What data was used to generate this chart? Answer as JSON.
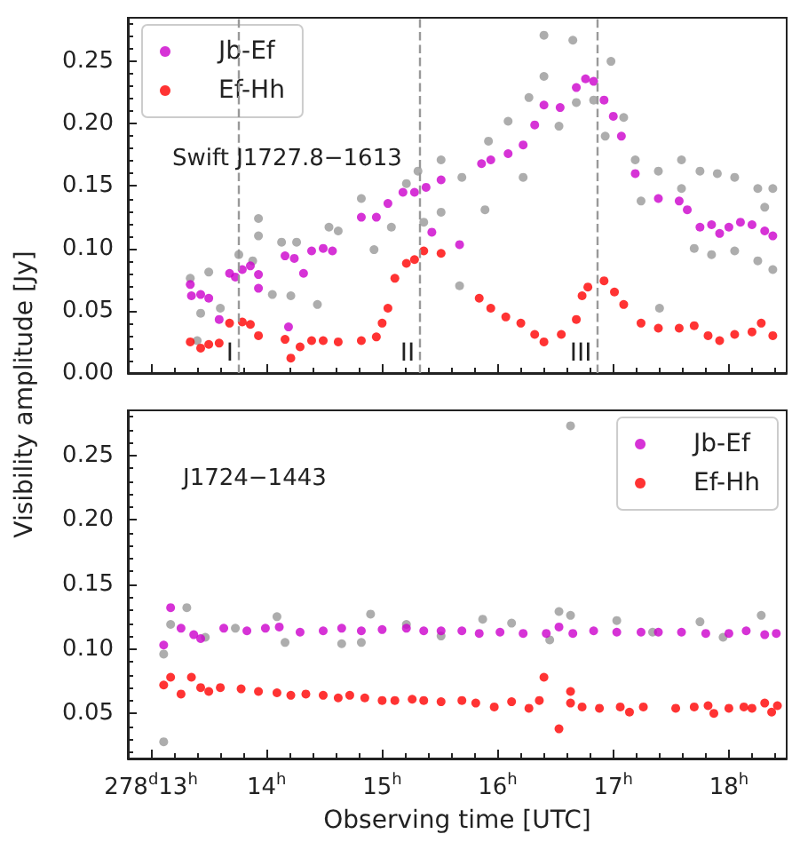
{
  "chart_data": [
    {
      "type": "scatter",
      "title": "Swift J1727.8−1613",
      "ylabel": "Visibility amplitude [Jy]",
      "xlim": [
        12.8,
        18.5
      ],
      "xticks": [
        13,
        14,
        15,
        16,
        17,
        18
      ],
      "ylim": [
        0,
        0.285
      ],
      "yticks": [
        {
          "value": 0,
          "label": "0.00"
        },
        0.05,
        {
          "value": 0.1,
          "label": "0.10"
        },
        0.15,
        {
          "value": 0.2,
          "label": "0.20"
        },
        0.25
      ],
      "tick_labels": "y",
      "grid": false,
      "legend": "top left",
      "marker": "circle",
      "ref_lines": [
        {
          "axis": "x",
          "value": 13.76,
          "label": "I",
          "color": "#999999",
          "line_style": "dashed"
        },
        {
          "axis": "x",
          "value": 15.33,
          "label": "II",
          "color": "#999999",
          "line_style": "dashed"
        },
        {
          "axis": "x",
          "value": 16.86,
          "label": "III",
          "color": "#999999",
          "line_style": "dashed"
        }
      ],
      "series": [
        {
          "color": "#999999",
          "x": [
            13.34,
            13.43,
            13.5,
            13.4,
            13.6,
            13.76,
            13.88,
            13.93,
            13.93,
            14.05,
            14.13,
            14.21,
            14.26,
            14.44,
            14.54,
            14.62,
            14.93,
            14.82,
            15.08,
            15.21,
            15.31,
            15.36,
            15.51,
            15.51,
            15.67,
            15.69,
            15.89,
            15.92,
            16.09,
            16.22,
            16.27,
            16.4,
            16.4,
            16.53,
            16.65,
            16.68,
            16.83,
            16.98,
            16.93,
            17.09,
            17.19,
            17.24,
            17.39,
            17.4,
            17.59,
            17.59,
            17.75,
            17.7,
            17.9,
            17.85,
            18.05,
            18.05,
            18.25,
            18.25,
            18.38,
            18.38,
            18.31
          ],
          "values": [
            0.076,
            0.048,
            0.081,
            0.026,
            0.052,
            0.095,
            0.09,
            0.124,
            0.11,
            0.063,
            0.105,
            0.062,
            0.105,
            0.055,
            0.117,
            0.114,
            0.099,
            0.14,
            0.117,
            0.152,
            0.162,
            0.121,
            0.171,
            0.129,
            0.07,
            0.157,
            0.131,
            0.186,
            0.202,
            0.157,
            0.221,
            0.271,
            0.238,
            0.198,
            0.267,
            0.217,
            0.219,
            0.25,
            0.19,
            0.205,
            0.171,
            0.138,
            0.162,
            0.052,
            0.171,
            0.148,
            0.162,
            0.1,
            0.16,
            0.095,
            0.157,
            0.098,
            0.148,
            0.09,
            0.148,
            0.083,
            0.133
          ]
        },
        {
          "name": "Jb-Ef",
          "color": "#cc00cc",
          "x": [
            13.34,
            13.35,
            13.43,
            13.5,
            13.59,
            13.68,
            13.73,
            13.79,
            13.86,
            13.93,
            13.93,
            14.16,
            14.24,
            14.19,
            14.32,
            14.39,
            14.49,
            14.57,
            14.82,
            14.95,
            15.05,
            15.18,
            15.28,
            15.38,
            15.43,
            15.51,
            15.67,
            15.86,
            15.94,
            16.09,
            16.22,
            16.32,
            16.4,
            16.54,
            16.68,
            16.76,
            16.83,
            16.92,
            17.0,
            17.07,
            17.19,
            17.39,
            17.57,
            17.64,
            17.75,
            17.85,
            17.92,
            18.0,
            18.1,
            18.2,
            18.31,
            18.38
          ],
          "values": [
            0.071,
            0.062,
            0.063,
            0.06,
            0.043,
            0.08,
            0.077,
            0.083,
            0.086,
            0.079,
            0.068,
            0.094,
            0.092,
            0.037,
            0.08,
            0.098,
            0.1,
            0.098,
            0.125,
            0.125,
            0.136,
            0.145,
            0.145,
            0.149,
            0.113,
            0.155,
            0.103,
            0.168,
            0.171,
            0.176,
            0.183,
            0.199,
            0.215,
            0.213,
            0.229,
            0.236,
            0.234,
            0.219,
            0.206,
            0.19,
            0.16,
            0.14,
            0.138,
            0.131,
            0.117,
            0.119,
            0.112,
            0.117,
            0.121,
            0.119,
            0.114,
            0.11
          ]
        },
        {
          "name": "Ef-Hh",
          "color": "#ff0000",
          "x": [
            13.34,
            13.43,
            13.5,
            13.59,
            13.68,
            13.79,
            13.86,
            13.93,
            14.16,
            14.21,
            14.29,
            14.39,
            14.49,
            14.62,
            14.82,
            14.95,
            15.0,
            15.05,
            15.11,
            15.21,
            15.28,
            15.36,
            15.51,
            15.84,
            15.94,
            16.07,
            16.2,
            16.32,
            16.4,
            16.55,
            16.68,
            16.73,
            16.78,
            16.92,
            17.01,
            17.09,
            17.24,
            17.39,
            17.57,
            17.7,
            17.82,
            17.92,
            18.05,
            18.2,
            18.28,
            18.38
          ],
          "values": [
            0.025,
            0.02,
            0.023,
            0.024,
            0.04,
            0.041,
            0.039,
            0.03,
            0.027,
            0.012,
            0.021,
            0.026,
            0.026,
            0.025,
            0.026,
            0.029,
            0.04,
            0.052,
            0.076,
            0.088,
            0.091,
            0.098,
            0.096,
            0.06,
            0.052,
            0.045,
            0.04,
            0.031,
            0.025,
            0.031,
            0.043,
            0.062,
            0.069,
            0.074,
            0.065,
            0.055,
            0.04,
            0.036,
            0.036,
            0.038,
            0.03,
            0.026,
            0.031,
            0.033,
            0.04,
            0.03
          ]
        }
      ]
    },
    {
      "type": "scatter",
      "title": "J1724−1443",
      "xlabel": "Observing time [UTC]",
      "xlim": [
        12.8,
        18.5
      ],
      "xticks": [
        {
          "value": 13,
          "label": "278$^{d}$13$^{h}$"
        },
        {
          "value": 14,
          "label": "14$^{h}$"
        },
        {
          "value": 15,
          "label": "15$^{h}$"
        },
        {
          "value": 16,
          "label": "16$^{h}$"
        },
        {
          "value": 17,
          "label": "17$^{h}$"
        },
        {
          "value": 18,
          "label": "18$^{h}$"
        }
      ],
      "ylim": [
        0.015,
        0.285
      ],
      "yticks": [
        0.05,
        {
          "value": 0.1,
          "label": "0.10"
        },
        0.15,
        {
          "value": 0.2,
          "label": "0.20"
        },
        0.25
      ],
      "grid": false,
      "legend": "top right",
      "marker": "circle",
      "series": [
        {
          "color": "#999999",
          "x": [
            13.11,
            13.11,
            13.17,
            13.31,
            13.47,
            13.73,
            14.09,
            14.16,
            14.65,
            14.82,
            14.9,
            15.21,
            15.51,
            15.87,
            16.12,
            16.45,
            16.53,
            16.63,
            16.63,
            17.03,
            17.34,
            17.75,
            18.28,
            17.95
          ],
          "values": [
            0.028,
            0.096,
            0.119,
            0.132,
            0.109,
            0.116,
            0.125,
            0.105,
            0.104,
            0.105,
            0.127,
            0.119,
            0.11,
            0.123,
            0.12,
            0.107,
            0.129,
            0.273,
            0.126,
            0.122,
            0.113,
            0.121,
            0.126,
            0.109
          ]
        },
        {
          "name": "Jb-Ef",
          "color": "#cc00cc",
          "x": [
            13.11,
            13.17,
            13.26,
            13.37,
            13.43,
            13.63,
            13.83,
            13.99,
            14.11,
            14.29,
            14.49,
            14.65,
            14.82,
            15.0,
            15.21,
            15.36,
            15.51,
            15.69,
            15.84,
            16.02,
            16.22,
            16.42,
            16.53,
            16.65,
            16.83,
            17.03,
            17.24,
            17.39,
            17.59,
            17.8,
            18.0,
            18.15,
            18.31,
            18.41
          ],
          "values": [
            0.103,
            0.132,
            0.116,
            0.111,
            0.108,
            0.116,
            0.114,
            0.116,
            0.117,
            0.113,
            0.114,
            0.116,
            0.114,
            0.115,
            0.116,
            0.114,
            0.114,
            0.114,
            0.112,
            0.113,
            0.112,
            0.112,
            0.117,
            0.112,
            0.114,
            0.113,
            0.113,
            0.113,
            0.113,
            0.112,
            0.112,
            0.114,
            0.111,
            0.112
          ]
        },
        {
          "name": "Ef-Hh",
          "color": "#ff0000",
          "x": [
            13.11,
            13.17,
            13.26,
            13.35,
            13.43,
            13.5,
            13.6,
            13.78,
            13.93,
            14.09,
            14.21,
            14.34,
            14.49,
            14.62,
            14.72,
            14.85,
            15.0,
            15.11,
            15.26,
            15.36,
            15.51,
            15.69,
            15.81,
            15.97,
            16.12,
            16.27,
            16.36,
            16.4,
            16.53,
            16.63,
            16.63,
            16.73,
            16.88,
            17.06,
            17.14,
            17.26,
            17.54,
            17.7,
            17.82,
            17.87,
            18.0,
            18.13,
            18.2,
            18.31,
            18.37,
            18.42
          ],
          "values": [
            0.072,
            0.078,
            0.065,
            0.078,
            0.07,
            0.067,
            0.07,
            0.069,
            0.067,
            0.066,
            0.064,
            0.065,
            0.064,
            0.062,
            0.064,
            0.062,
            0.06,
            0.06,
            0.061,
            0.06,
            0.059,
            0.06,
            0.058,
            0.055,
            0.059,
            0.054,
            0.06,
            0.078,
            0.038,
            0.067,
            0.058,
            0.055,
            0.054,
            0.055,
            0.051,
            0.055,
            0.054,
            0.055,
            0.056,
            0.05,
            0.054,
            0.055,
            0.054,
            0.058,
            0.051,
            0.056
          ]
        }
      ]
    }
  ]
}
